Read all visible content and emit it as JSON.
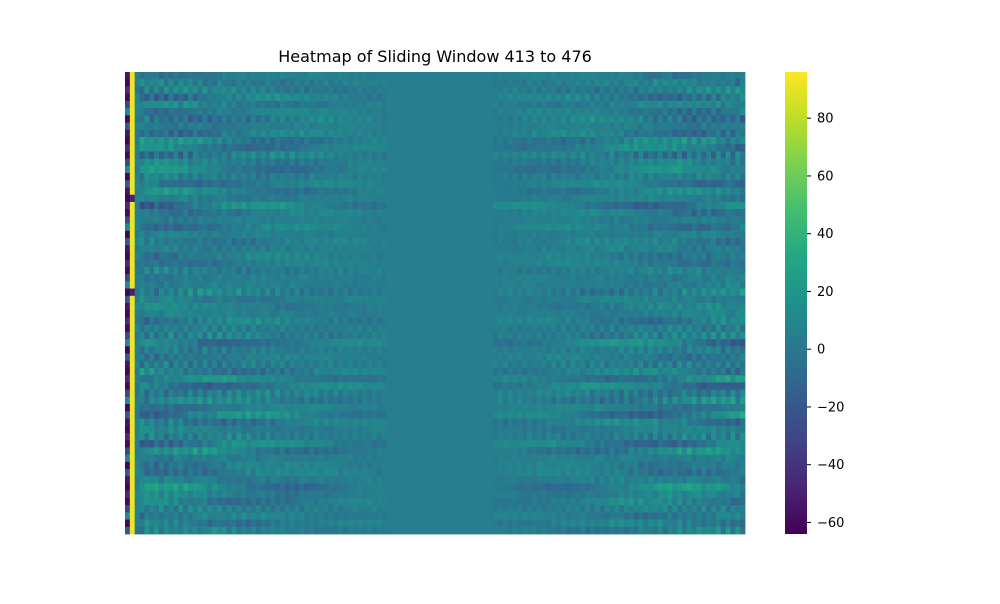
{
  "chart_data": {
    "type": "heatmap",
    "title": "Heatmap of Sliding Window 413 to 476",
    "xlabel": "",
    "ylabel": "",
    "colormap": "viridis",
    "vmin": -64,
    "vmax": 96,
    "colorbar_ticks": [
      -60,
      -40,
      -20,
      0,
      20,
      40,
      60,
      80
    ],
    "colorbar_tick_labels": [
      "−60",
      "−40",
      "−20",
      "0",
      "20",
      "40",
      "60",
      "80"
    ],
    "n_rows": 64,
    "n_cols": 128,
    "column_profile": {
      "col0_values_sample": [
        -55,
        -62,
        -45,
        -60,
        -30,
        10,
        -62,
        -20
      ],
      "col1_value": 92,
      "background_value": 4,
      "dense_ranges": [
        [
          3,
          53
        ],
        [
          76,
          127
        ]
      ],
      "flat_range": [
        54,
        75
      ],
      "max_amplitude_near_edges": 30,
      "amplitude_at_flat_edge": 10
    }
  }
}
